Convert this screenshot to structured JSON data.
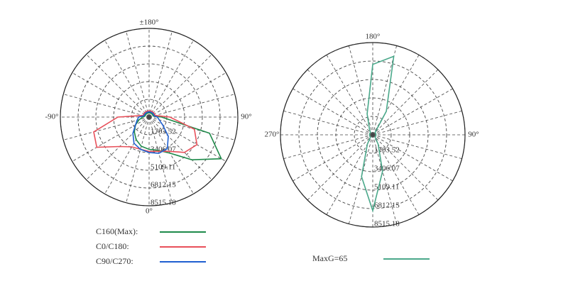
{
  "chart_data": [
    {
      "type": "polar",
      "theta": [
        -180,
        -165,
        -150,
        -135,
        -120,
        -105,
        -90,
        -75,
        -60,
        -45,
        -30,
        -15,
        0,
        15,
        30,
        45,
        60,
        75,
        90,
        105,
        120,
        135,
        150,
        165,
        180
      ],
      "rlim": [
        0,
        8515.18
      ],
      "rticks": [
        1703.52,
        3406.07,
        5109.11,
        6812.15,
        8515.18
      ],
      "angle_ticks": [
        {
          "value": 180,
          "label": "±180°"
        },
        {
          "value": -90,
          "label": "-90°"
        },
        {
          "value": 90,
          "label": "90°"
        },
        {
          "value": 0,
          "label": "0°"
        }
      ],
      "angle_label_color": "#333333",
      "series": [
        {
          "name": "C160(Max):",
          "color": "#1e8a4a",
          "values": [
            400,
            400,
            400,
            400,
            400,
            400,
            600,
            1000,
            1500,
            2000,
            2500,
            2900,
            3100,
            3300,
            4000,
            5800,
            8000,
            6000,
            1200,
            400,
            400,
            400,
            400,
            400,
            400
          ]
        },
        {
          "name": "C0/C180:",
          "color": "#e8505a",
          "values": [
            600,
            600,
            600,
            600,
            600,
            600,
            3000,
            5500,
            5800,
            4000,
            3300,
            3200,
            3300,
            3400,
            3800,
            4800,
            5300,
            4500,
            2000,
            600,
            600,
            600,
            600,
            600,
            600
          ]
        },
        {
          "name": "C90/C270:",
          "color": "#1f5fd0",
          "values": [
            500,
            500,
            500,
            500,
            500,
            500,
            1000,
            1200,
            1500,
            2200,
            2900,
            3200,
            3400,
            3600,
            3500,
            2600,
            1500,
            1000,
            800,
            500,
            500,
            500,
            500,
            500,
            500
          ]
        }
      ]
    },
    {
      "type": "polar",
      "theta": [
        -180,
        -165,
        -150,
        -135,
        -120,
        -105,
        -90,
        -75,
        -60,
        -45,
        -30,
        -15,
        0,
        15,
        30,
        45,
        60,
        75,
        90,
        105,
        120,
        135,
        150,
        165,
        180
      ],
      "rlim": [
        0,
        8515.18
      ],
      "rticks": [
        1703.52,
        3406.07,
        5109.11,
        6812.15,
        8515.18
      ],
      "angle_ticks": [
        {
          "value": 180,
          "label": "180°"
        },
        {
          "value": -90,
          "label": "270°"
        },
        {
          "value": 90,
          "label": "90°"
        }
      ],
      "angle_label_color": "#a0506e",
      "series": [
        {
          "name": "MaxG=65",
          "color": "#4aa88a",
          "values": [
            6500,
            2000,
            600,
            300,
            300,
            300,
            300,
            300,
            300,
            300,
            1000,
            4000,
            7000,
            3500,
            1000,
            300,
            300,
            300,
            300,
            300,
            300,
            300,
            2500,
            7500,
            6500
          ]
        }
      ]
    }
  ]
}
